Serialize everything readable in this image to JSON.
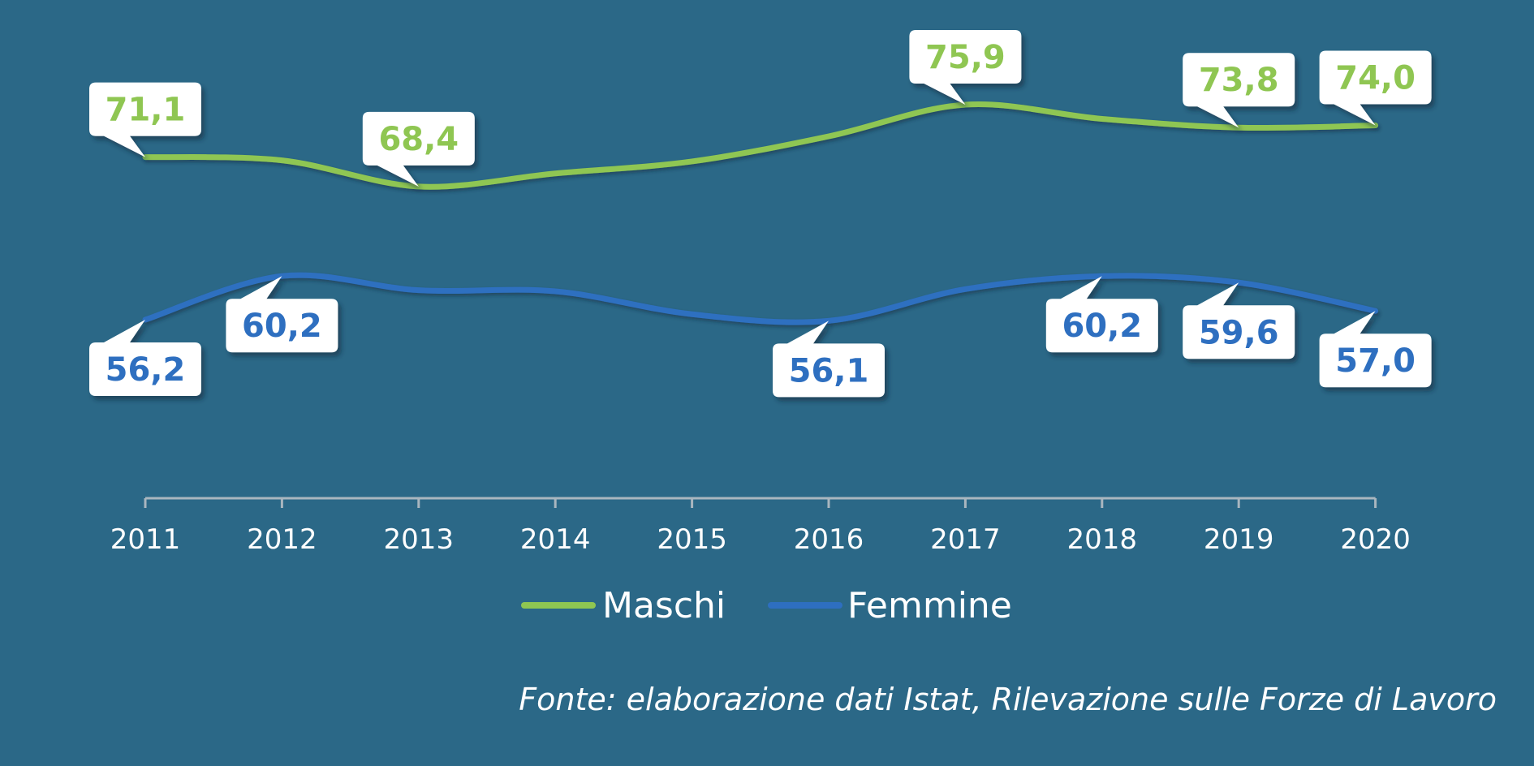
{
  "chart_data": {
    "type": "line",
    "categories": [
      "2011",
      "2012",
      "2013",
      "2014",
      "2015",
      "2016",
      "2017",
      "2018",
      "2019",
      "2020"
    ],
    "series": [
      {
        "name": "Maschi",
        "color": "#8fc652",
        "values": [
          71.1,
          70.8,
          68.4,
          69.6,
          70.7,
          73.0,
          75.9,
          74.6,
          73.8,
          74.0
        ],
        "labels": [
          "71,1",
          null,
          "68,4",
          null,
          null,
          null,
          "75,9",
          null,
          "73,8",
          "74,0"
        ]
      },
      {
        "name": "Femmine",
        "color": "#2e6fc0",
        "values": [
          56.2,
          60.2,
          58.9,
          58.8,
          56.7,
          56.1,
          59.0,
          60.2,
          59.6,
          57.0
        ],
        "labels": [
          "56,2",
          "60,2",
          null,
          null,
          null,
          "56,1",
          null,
          "60,2",
          "59,6",
          "57,0"
        ]
      }
    ],
    "xlabel": "",
    "ylabel": "",
    "grid": false,
    "legend_position": "bottom"
  },
  "source_note": "Fonte: elaborazione dati Istat, Rilevazione sulle Forze di Lavoro",
  "colors": {
    "background": "#2b6887",
    "axis": "#a9b6bf",
    "callout_bg": "#ffffff"
  }
}
